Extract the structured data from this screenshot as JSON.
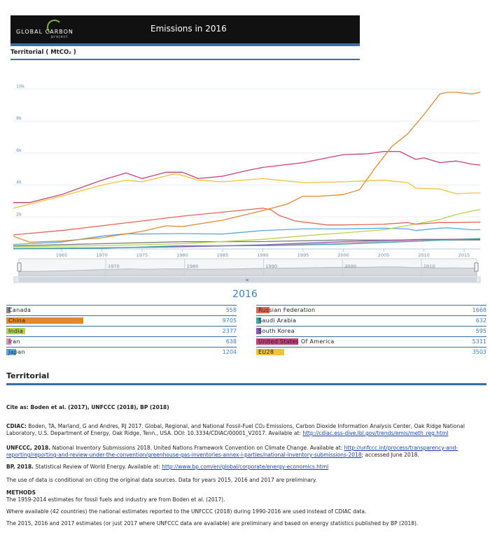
{
  "header": {
    "logo_text": "GLOBAL CARBON",
    "logo_sub": "project",
    "title": "Emissions in 2016",
    "subtitle": "Territorial ( MtCO₂ )"
  },
  "colors": {
    "accent": "#3b6ea5",
    "link": "#1a3fb5",
    "value": "#3b7fc0"
  },
  "chart_data": {
    "type": "line",
    "title": "Emissions in 2016",
    "ylabel": "Territorial ( MtCO₂ )",
    "xlim": [
      1959,
      2017
    ],
    "ylim": [
      0,
      11200
    ],
    "y_ticks": [
      2000,
      4000,
      6000,
      8000,
      10000
    ],
    "y_tick_labels": [
      "2k",
      "4k",
      "6k",
      "8k",
      "10k"
    ],
    "x_ticks": [
      1965,
      1970,
      1975,
      1980,
      1985,
      1990,
      1995,
      2000,
      2005,
      2010,
      2015
    ],
    "navigator_ticks": [
      1970,
      1980,
      1990,
      2000,
      2010
    ],
    "grid": true,
    "series": [
      {
        "name": "China",
        "color": "#e08a2c",
        "x": [
          1959,
          1961,
          1965,
          1970,
          1975,
          1978,
          1980,
          1985,
          1990,
          1993,
          1995,
          1997,
          2000,
          2002,
          2004,
          2006,
          2008,
          2010,
          2012,
          2013,
          2014,
          2016,
          2017
        ],
        "y": [
          800,
          420,
          500,
          700,
          1100,
          1450,
          1400,
          1800,
          2400,
          2800,
          3300,
          3300,
          3400,
          3700,
          5100,
          6400,
          7200,
          8400,
          9700,
          9800,
          9800,
          9700,
          9800
        ]
      },
      {
        "name": "United States Of America",
        "color": "#c8407a",
        "x": [
          1959,
          1961,
          1965,
          1970,
          1973,
          1975,
          1978,
          1980,
          1982,
          1985,
          1988,
          1990,
          1995,
          2000,
          2003,
          2005,
          2007,
          2009,
          2010,
          2012,
          2014,
          2016,
          2017
        ],
        "y": [
          2900,
          2900,
          3400,
          4300,
          4750,
          4400,
          4800,
          4800,
          4400,
          4550,
          4900,
          5100,
          5400,
          5900,
          5950,
          6100,
          6100,
          5600,
          5700,
          5400,
          5500,
          5300,
          5250
        ]
      },
      {
        "name": "EU28",
        "color": "#f2c23b",
        "x": [
          1959,
          1965,
          1970,
          1973,
          1975,
          1979,
          1980,
          1982,
          1985,
          1990,
          1995,
          2000,
          2005,
          2008,
          2009,
          2012,
          2014,
          2016,
          2017
        ],
        "y": [
          2550,
          3300,
          4000,
          4300,
          4200,
          4700,
          4600,
          4300,
          4200,
          4400,
          4150,
          4200,
          4300,
          4150,
          3800,
          3750,
          3450,
          3500,
          3500
        ]
      },
      {
        "name": "Russian Federation",
        "color": "#e4665a",
        "x": [
          1959,
          1965,
          1970,
          1975,
          1980,
          1985,
          1988,
          1990,
          1991,
          1992,
          1994,
          1998,
          2000,
          2005,
          2008,
          2009,
          2012,
          2014,
          2016,
          2017
        ],
        "y": [
          880,
          1150,
          1450,
          1750,
          2050,
          2300,
          2450,
          2550,
          2450,
          2100,
          1750,
          1500,
          1500,
          1550,
          1650,
          1550,
          1650,
          1650,
          1670,
          1680
        ]
      },
      {
        "name": "India",
        "color": "#b7d34b",
        "x": [
          1959,
          1970,
          1980,
          1990,
          1995,
          2000,
          2005,
          2010,
          2012,
          2014,
          2016,
          2017
        ],
        "y": [
          130,
          200,
          330,
          600,
          820,
          1000,
          1200,
          1650,
          1850,
          2150,
          2380,
          2460
        ]
      },
      {
        "name": "Japan",
        "color": "#5aa9e6",
        "x": [
          1959,
          1965,
          1970,
          1973,
          1975,
          1980,
          1985,
          1990,
          1995,
          2000,
          2005,
          2008,
          2009,
          2012,
          2013,
          2016,
          2017
        ],
        "y": [
          280,
          430,
          800,
          950,
          930,
          960,
          930,
          1150,
          1250,
          1250,
          1300,
          1250,
          1150,
          1300,
          1320,
          1200,
          1210
        ]
      },
      {
        "name": "Russian Federation·Saudi Arabia",
        "color": "#3aaba5",
        "x": [
          1959,
          1970,
          1980,
          1990,
          2000,
          2010,
          2016,
          2017
        ],
        "y": [
          10,
          40,
          200,
          200,
          300,
          500,
          630,
          640
        ]
      },
      {
        "name": "South Korea",
        "color": "#8e5bb3",
        "x": [
          1959,
          1970,
          1980,
          1990,
          2000,
          2010,
          2016,
          2017
        ],
        "y": [
          20,
          60,
          140,
          260,
          460,
          600,
          595,
          600
        ]
      },
      {
        "name": "Iran",
        "color": "#e48fc0",
        "x": [
          1959,
          1970,
          1980,
          1990,
          2000,
          2010,
          2016,
          2017
        ],
        "y": [
          30,
          70,
          130,
          220,
          370,
          560,
          640,
          650
        ]
      },
      {
        "name": "Canada",
        "color": "#7a7a7a",
        "x": [
          1959,
          1970,
          1980,
          1990,
          2000,
          2010,
          2016,
          2017
        ],
        "y": [
          190,
          330,
          450,
          460,
          560,
          550,
          558,
          560
        ]
      }
    ]
  },
  "year_title": "2016",
  "legend": {
    "left": [
      {
        "name": "Canada",
        "value": "558",
        "color": "#8a8a8a"
      },
      {
        "name": "China",
        "value": "9705",
        "color": "#e08a2c"
      },
      {
        "name": "India",
        "value": "2377",
        "color": "#b7d34b"
      },
      {
        "name": "Iran",
        "value": "638",
        "color": "#e48fc0"
      },
      {
        "name": "Japan",
        "value": "1204",
        "color": "#5aa9e6"
      }
    ],
    "right": [
      {
        "name": "Russian Federation",
        "value": "1668",
        "color": "#e4665a"
      },
      {
        "name": "Saudi Arabia",
        "value": "632",
        "color": "#3aaba5"
      },
      {
        "name": "South Korea",
        "value": "595",
        "color": "#8e5bb3"
      },
      {
        "name": "United States Of America",
        "value": "5311",
        "color": "#c8407a"
      },
      {
        "name": "EU28",
        "value": "3503",
        "color": "#f2c23b"
      }
    ]
  },
  "section": {
    "title": "Territorial",
    "cite_as": "Cite as: Boden et al. (2017), UNFCCC (2018), BP (2018)",
    "cdiac_label": "CDIAC:",
    "cdiac_text": "Boden, TA, Marland, G and Andres, RJ 2017. Global, Regional, and National Fossil-Fuel CO₂ Emissions, Carbon Dioxide Information Analysis Center, Oak Ridge National Laboratory, U.S. Department of Energy, Oak Ridge, Tenn., USA. DOI: 10.3334/CDIAC/00001_V2017. Available at:",
    "cdiac_link": "http://cdiac.ess-dive.lbl.gov/trends/emis/meth_reg.html",
    "unfccc_label": "UNFCCC, 2018.",
    "unfccc_text": "National Inventory Submissions 2018. United Nations Framework Convention on Climate Change. Available at:",
    "unfccc_link": "http://unfccc.int/process/transparency-and-reporting/reporting-and-review-under-the-convention/greenhouse-gas-inventories-annex-i-parties/national-inventory-submissions-2018",
    "unfccc_tail": "; accessed June 2018.",
    "bp_label": "BP, 2018.",
    "bp_text": "Statistical Review of World Energy. Available at:",
    "bp_link": "http://www.bp.com/en/global/corporate/energy-economics.html",
    "conditions": "The use of data is conditional on citing the original data sources. Data for years 2015, 2016 and 2017 are preliminary.",
    "methods_title": "METHODS",
    "methods_1": "The 1959-2014 estimates for fossil fuels and industry are from Boden et al. (2017).",
    "methods_2": "Where available (42 countries) the national estimates reported to the UNFCCC (2018) during 1990-2016 are used instead of CDIAC data.",
    "methods_3": "The 2015, 2016 and 2017 estimates (or just 2017 where UNFCCC data are available) are preliminary and based on energy statistics published by BP (2018)."
  }
}
